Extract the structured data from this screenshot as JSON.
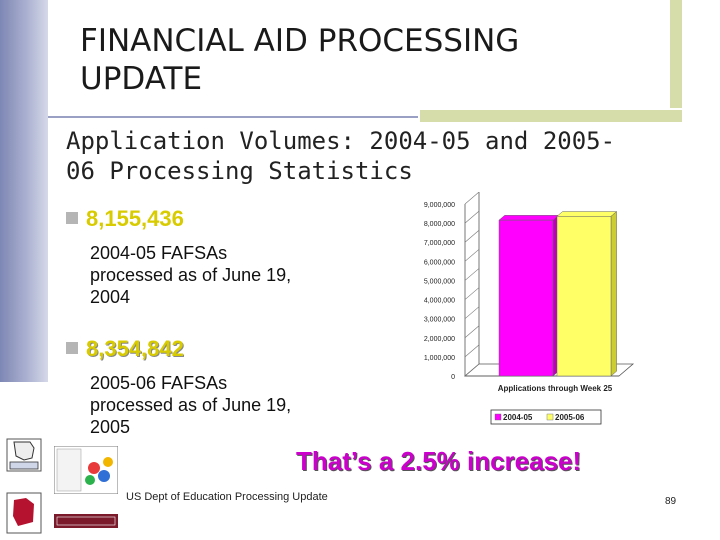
{
  "slide": {
    "title_line1": "FINANCIAL AID PROCESSING",
    "title_line2": "UPDATE",
    "subtitle_line1": "Application Volumes: 2004-05 and 2005-",
    "subtitle_line2": "06 Processing Statistics",
    "bullets": [
      {
        "value": "8,155,436",
        "line1": "2004-05 FAFSAs",
        "line2": "processed as of June 19,",
        "line3": "2004"
      },
      {
        "value": "8,354,842",
        "line1": "2005-06 FAFSAs",
        "line2": "processed as of June 19,",
        "line3": "2005"
      }
    ],
    "highlight": "That’s a 2.5% increase!",
    "footer": "US Dept of Education Processing Update",
    "page_number": "89"
  },
  "colors": {
    "series1": "#ff00ff",
    "series2": "#ffff66",
    "highlight": "#cc00cc",
    "bullet_value": "#d8cb00"
  },
  "chart_data": {
    "type": "bar",
    "categories": [
      "Applications through Week 25"
    ],
    "xlabel": "Applications through Week 25",
    "ylim": [
      0,
      9000000
    ],
    "yticks": [
      0,
      1000000,
      2000000,
      3000000,
      4000000,
      5000000,
      6000000,
      7000000,
      8000000,
      9000000
    ],
    "ytick_labels": [
      "0",
      "1,000,000",
      "2,000,000",
      "3,000,000",
      "4,000,000",
      "5,000,000",
      "6,000,000",
      "7,000,000",
      "8,000,000",
      "9,000,000"
    ],
    "series": [
      {
        "name": "2004-05",
        "values": [
          8155436
        ]
      },
      {
        "name": "2005-06",
        "values": [
          8354842
        ]
      }
    ],
    "legend": "bottom",
    "grid": false,
    "three_d": true
  }
}
